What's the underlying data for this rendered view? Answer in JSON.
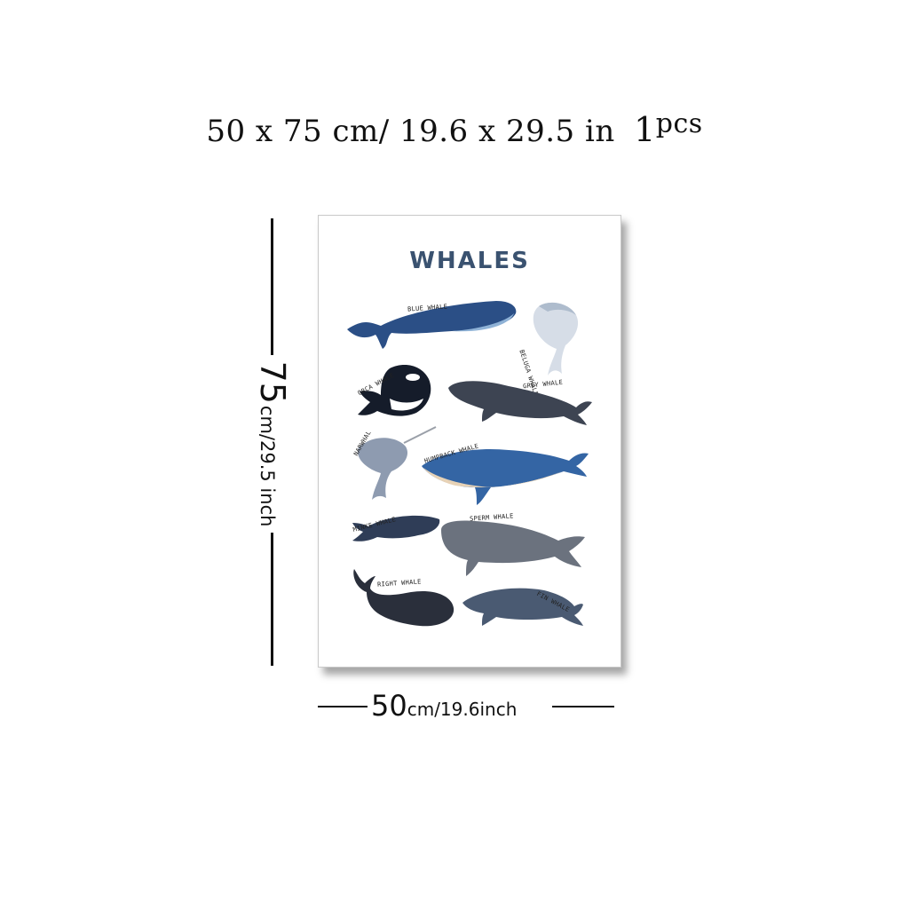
{
  "headline": {
    "size_text": "50 x 75 cm/ 19.6 x 29.5 in",
    "pcs_number": "1",
    "pcs_unit": "pcs"
  },
  "height_label": {
    "value": "75",
    "unit": "cm/29.5 inch"
  },
  "width_label": {
    "value": "50",
    "unit": "cm/19.6inch"
  },
  "poster": {
    "title": "WHALES",
    "whales": {
      "blue": "BLUE WHALE",
      "beluga": "BELUGA WHALE",
      "orca": "ORCA WHALE",
      "grey": "GREY WHALE",
      "narwhal": "NARWHAL",
      "humpback": "HUMPBACK WHALE",
      "minke": "MINKE WHALE",
      "sperm": "SPERM WHALE",
      "right": "RIGHT WHALE",
      "fin": "FIN WHALE"
    }
  },
  "colors": {
    "title": "#3a5270",
    "blue_whale": "#2b4f86",
    "orca": "#151c2a",
    "grey_whale": "#3d4452",
    "humpback": "#3465a4",
    "sperm": "#6b727e",
    "fin": "#4a5a72"
  }
}
